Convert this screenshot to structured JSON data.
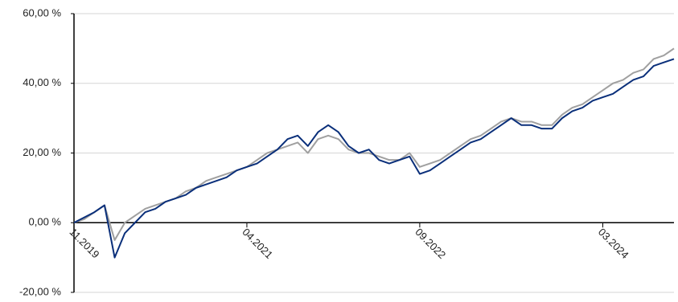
{
  "chart_data": {
    "type": "line",
    "categories": [
      "11.2019",
      null,
      null,
      null,
      null,
      null,
      null,
      null,
      null,
      null,
      null,
      null,
      null,
      null,
      null,
      null,
      null,
      "04.2021",
      null,
      null,
      null,
      null,
      null,
      null,
      null,
      null,
      null,
      null,
      null,
      null,
      null,
      null,
      null,
      null,
      "09.2022",
      null,
      null,
      null,
      null,
      null,
      null,
      null,
      null,
      null,
      null,
      null,
      null,
      null,
      null,
      null,
      null,
      null,
      "03.2024",
      null,
      null,
      null,
      null,
      null,
      null,
      null
    ],
    "series": [
      {
        "color": "#0a2f7a",
        "values": [
          0,
          1.5,
          3,
          5,
          -10,
          -3,
          0,
          3,
          4,
          6,
          7,
          8,
          10,
          11,
          12,
          13,
          15,
          16,
          17,
          19,
          21,
          24,
          25,
          22,
          26,
          28,
          26,
          22,
          20,
          21,
          18,
          17,
          18,
          19,
          14,
          15,
          17,
          19,
          21,
          23,
          24,
          26,
          28,
          30,
          28,
          28,
          27,
          27,
          30,
          32,
          33,
          35,
          36,
          37,
          39,
          41,
          42,
          45,
          46,
          47
        ]
      },
      {
        "color": "#a0a0a0",
        "values": [
          0,
          1,
          3,
          5,
          -5,
          0,
          2,
          4,
          5,
          6,
          7,
          9,
          10,
          12,
          13,
          14,
          15,
          16,
          18,
          20,
          21,
          22,
          23,
          20,
          24,
          25,
          24,
          21,
          20,
          20,
          19,
          18,
          18,
          20,
          16,
          17,
          18,
          20,
          22,
          24,
          25,
          27,
          29,
          30,
          29,
          29,
          28,
          28,
          31,
          33,
          34,
          36,
          38,
          40,
          41,
          43,
          44,
          47,
          48,
          50
        ]
      }
    ],
    "ylim": [
      -20,
      60
    ],
    "yticks": [
      {
        "value": -20,
        "label": "-20,00 %"
      },
      {
        "value": 0,
        "label": "0,00 %"
      },
      {
        "value": 20,
        "label": "20,00 %"
      },
      {
        "value": 40,
        "label": "40,00 %"
      },
      {
        "value": 60,
        "label": "60,00 %"
      }
    ],
    "grid": true
  }
}
